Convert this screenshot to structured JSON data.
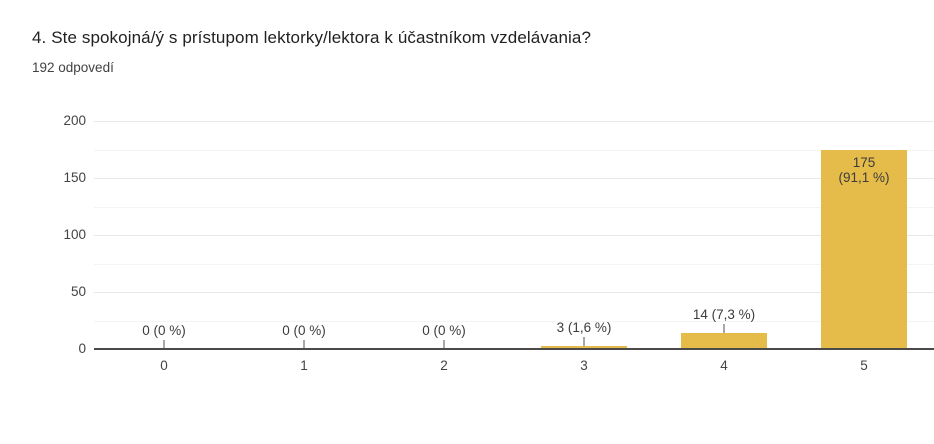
{
  "header": {
    "question_title": "4. Ste spokojná/ý s prístupom lektorky/lektora k účastníkom vzdelávania?",
    "responses_count": "192 odpovedí"
  },
  "chart_data": {
    "type": "bar",
    "title": "4. Ste spokojná/ý s prístupom lektorky/lektora k účastníkom vzdelávania?",
    "subtitle": "192 odpovedí",
    "total_responses": 192,
    "categories": [
      "0",
      "1",
      "2",
      "3",
      "4",
      "5"
    ],
    "values": [
      0,
      0,
      0,
      3,
      14,
      175
    ],
    "value_labels": [
      "0 (0 %)",
      "0 (0 %)",
      "0 (0 %)",
      "3 (1,6 %)",
      "14 (7,3 %)",
      "175 (91,1 %)"
    ],
    "label_positions": [
      "above",
      "above",
      "above",
      "above",
      "above",
      "inside"
    ],
    "ylim": [
      0,
      200
    ],
    "yticks": [
      0,
      50,
      100,
      150,
      200
    ],
    "minor_grid_step": 25,
    "xlabel": "",
    "ylabel": "",
    "grid": "on",
    "legend": "none"
  },
  "colors": {
    "bar": "#E5BC4A",
    "baseline": "#4a4a4a",
    "grid_major": "#e8e8e8",
    "grid_minor": "#f4f4f4",
    "stem": "#a8a8a8",
    "title_text": "#212121",
    "subtitle_text": "#424242",
    "tick_text": "#444444",
    "annotation_text": "#3c3c3c",
    "background": "#ffffff"
  }
}
